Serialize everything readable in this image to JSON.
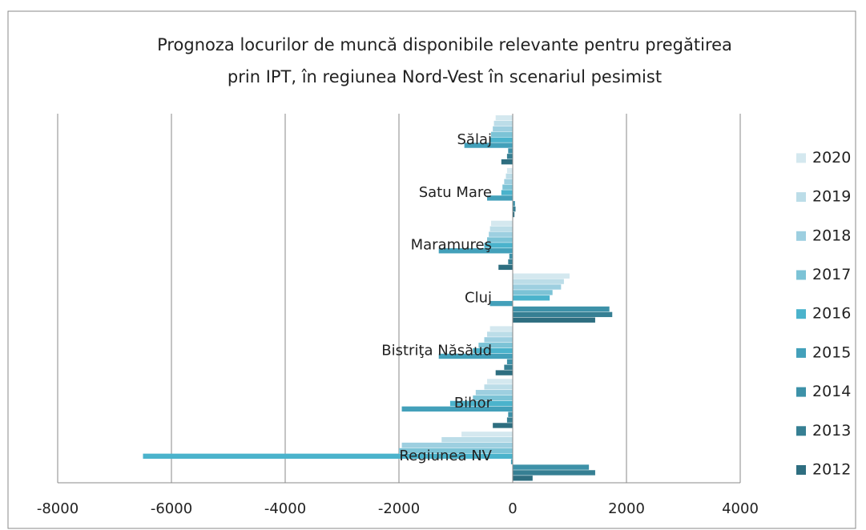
{
  "chart_data": {
    "type": "hbar",
    "title": [
      "Prognoza locurilor de muncă disponibile relevante pentru pregătirea",
      "prin IPT,  în regiunea Nord-Vest în scenariul pesimist"
    ],
    "categories": [
      "Regiunea NV",
      "Bihor",
      "Bistriţa Năsăud",
      "Cluj",
      "Maramureş",
      "Satu Mare",
      "Sălaj"
    ],
    "series": [
      {
        "name": "2012",
        "color": "#2e6e80",
        "values": [
          350,
          -350,
          -300,
          1450,
          -250,
          30,
          -200
        ]
      },
      {
        "name": "2013",
        "color": "#367f93",
        "values": [
          1450,
          -100,
          -150,
          1750,
          -80,
          50,
          -100
        ]
      },
      {
        "name": "2014",
        "color": "#3d91a8",
        "values": [
          1340,
          -80,
          -100,
          1700,
          -60,
          40,
          -80
        ]
      },
      {
        "name": "2015",
        "color": "#43a0ba",
        "values": [
          -30,
          -1950,
          -1300,
          -400,
          -1300,
          -450,
          -850
        ]
      },
      {
        "name": "2016",
        "color": "#4bb3cc",
        "values": [
          -6500,
          -1100,
          -700,
          650,
          -500,
          -200,
          -400
        ]
      },
      {
        "name": "2017",
        "color": "#7cc3d6",
        "values": [
          -2000,
          -700,
          -600,
          700,
          -450,
          -180,
          -380
        ]
      },
      {
        "name": "2018",
        "color": "#9dcfe0",
        "values": [
          -1950,
          -650,
          -500,
          850,
          -420,
          -150,
          -350
        ]
      },
      {
        "name": "2019",
        "color": "#bcdde8",
        "values": [
          -1250,
          -500,
          -450,
          900,
          -400,
          -120,
          -330
        ]
      },
      {
        "name": "2020",
        "color": "#d4e8ef",
        "values": [
          -900,
          -450,
          -400,
          1000,
          -380,
          -100,
          -300
        ]
      }
    ],
    "xlim": [
      -8000,
      4000
    ],
    "xticks": [
      -8000,
      -6000,
      -4000,
      -2000,
      0,
      2000,
      4000
    ],
    "grid": true,
    "legend": "right"
  }
}
